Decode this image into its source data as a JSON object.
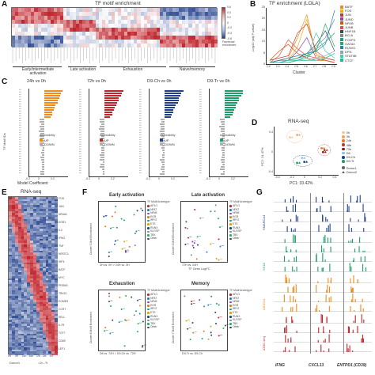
{
  "panels": {
    "a": {
      "label": "A",
      "title": "TF motif enrichment",
      "colorbar_ticks": [
        "0.6",
        "0.4",
        "0.2",
        "0",
        "-0.2",
        "-0.4",
        "-0.6"
      ],
      "colorbar_title": "Fractional enrichment",
      "groups": [
        "Early/intermediate activation",
        "Late activation",
        "Exhaustion",
        "Naive/memory"
      ]
    },
    "b": {
      "label": "B",
      "title": "TF enrichment (LOLA)",
      "ylabel": "-Log10 (adj P-value)",
      "xlabel": "Cluster",
      "x_ticks": [
        "C2",
        "C3",
        "C4",
        "C5",
        "C6",
        "C7",
        "C8",
        "C9"
      ],
      "y_ticks": [
        "0",
        "5",
        "10",
        "15",
        "20",
        "25"
      ],
      "legend": [
        {
          "name": "BATF",
          "color": "#f08a1c"
        },
        {
          "name": "FOS",
          "color": "#e8b020"
        },
        {
          "name": "JUN",
          "color": "#c0392b"
        },
        {
          "name": "JUND",
          "color": "#8e44ad"
        },
        {
          "name": "NFKB",
          "color": "#d35400"
        },
        {
          "name": "JUNB",
          "color": "#e74c3c"
        },
        {
          "name": "HNF1B",
          "color": "#34495e"
        },
        {
          "name": "BCL6",
          "color": "#7f8c8d"
        },
        {
          "name": "FOXP3",
          "color": "#16a085"
        },
        {
          "name": "GATA3",
          "color": "#27ae60"
        },
        {
          "name": "RUNX1",
          "color": "#2980b9"
        },
        {
          "name": "DPI1",
          "color": "#95a5a6"
        },
        {
          "name": "STAT5B",
          "color": "#48c9b0"
        },
        {
          "name": "CTCF",
          "color": "#1abc9c"
        }
      ]
    },
    "c": {
      "label": "C",
      "ylabel": "TF Motif IDs",
      "xlabel": "Model Coefficient",
      "subpanels": [
        {
          "title": "24h vs 0h",
          "color": "#f08a1c"
        },
        {
          "title": "72h vs 0h",
          "color": "#c0242b"
        },
        {
          "title": "D9-Ch vs 0h",
          "color": "#1f3f8c"
        },
        {
          "title": "D9-Tr vs 0h",
          "color": "#1e9c6a"
        }
      ],
      "legend_title": "Accessibility",
      "legend_up": "UP",
      "legend_down": "DOWN",
      "x_ticks": [
        "-0.2",
        "0",
        "0.2"
      ]
    },
    "d": {
      "label": "D",
      "title": "RNA-seq",
      "xlabel": "PC1: 33.42%",
      "ylabel": "PC2: 24.47%",
      "x_ticks": [
        "-0.4",
        "-0.2",
        "0",
        "0.2",
        "0.4"
      ],
      "y_ticks": [
        "-0.4",
        "0",
        "0.4"
      ],
      "legend": [
        {
          "name": "0h",
          "color": "#f5c89a"
        },
        {
          "name": "3h",
          "color": "#f4a460"
        },
        {
          "name": "24h",
          "color": "#e87722"
        },
        {
          "name": "48h",
          "color": "#c0392b"
        },
        {
          "name": "72h",
          "color": "#8b1a1a"
        },
        {
          "name": "D6",
          "color": "#7fc8e0"
        },
        {
          "name": "D9-Ch",
          "color": "#1f3f8c"
        },
        {
          "name": "D9-Tr",
          "color": "#1e9c6a"
        }
      ],
      "legend2": [
        {
          "name": "Donor1",
          "shape": "circle"
        },
        {
          "name": "Donor2",
          "shape": "triangle"
        }
      ]
    },
    "e": {
      "label": "E",
      "title": "RNA-seq",
      "row_genes": [
        "FOS",
        "JUN",
        "NR4A1",
        "EGR1",
        "IL2",
        "IFNG",
        "TNF",
        "NFATC1",
        "IRF4",
        "BATF",
        "MYC",
        "PRDM1",
        "TBX21",
        "EOMES",
        "CCR7",
        "SELL",
        "IL7R",
        "TCF7",
        "CD69",
        "LEF1"
      ],
      "bottom_labels": [
        "0h",
        "3h",
        "24h",
        "48h",
        "72h",
        "D6",
        "D9"
      ],
      "donor_label": "Donor1",
      "group_label": "-Ch -Tr"
    },
    "f": {
      "label": "F",
      "quads": [
        {
          "title": "Early activation",
          "xlabel": "3H vs. 0H > 24H vs. 3H",
          "ylabel": "Cluster 3 Motif Enrichment"
        },
        {
          "title": "Late activation",
          "xlabel": "72H vs. 24H",
          "ylabel": "Cluster 6 Motif Enrichment"
        },
        {
          "title": "Exhaustion",
          "xlabel": "D6 vs. 72H > D9-Ch vs. 72H",
          "ylabel": "Cluster 8 Motif Enrichment"
        },
        {
          "title": "Memory",
          "xlabel": "D9-Tr vs. D9-Ch",
          "ylabel": "Cluster 7 Motif Enrichment"
        }
      ],
      "xaxis_common": "TF Gene LogFC",
      "legend_title": "TF Motif Archetype",
      "archetypes": [
        "AP1/1",
        "NFAT",
        "NFkB",
        "EGR",
        "IRF/2",
        "ETS",
        "RUNX",
        "KLF/SP",
        "TBX",
        "Other"
      ]
    },
    "g": {
      "label": "G",
      "genes": [
        "IFNG",
        "CXCL13",
        "ENTPD1 (CD39)"
      ],
      "tracks": [
        {
          "name": "SMARCA4",
          "color": "#1f3f8c"
        },
        {
          "name": "SS18",
          "color": "#1e9c6a"
        },
        {
          "name": "ARID1A",
          "color": "#f08a1c"
        },
        {
          "name": "ATAC-seq",
          "color": "#c0242b"
        }
      ]
    }
  }
}
